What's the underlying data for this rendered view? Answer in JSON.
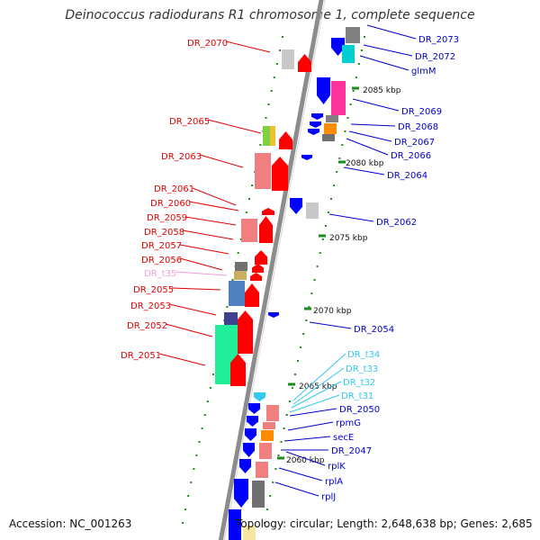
{
  "header": {
    "title": "Deinococcus radiodurans R1 chromosome 1, complete sequence"
  },
  "footer": {
    "accession": "Accession: NC_001263",
    "summary": "Topology: circular; Length: 2,648,638 bp; Genes: 2,685"
  },
  "colors": {
    "background": "#ffffff",
    "backbone": "#8c8c8c",
    "tick": "#1f8a1f",
    "forward_label": "#e00000",
    "reverse_label": "#0000cc",
    "trna_forward_label": "#f0a0d8",
    "trna_reverse_label": "#33c8ee"
  },
  "ruler": {
    "markers": [
      "2085 kbp",
      "2080 kbp",
      "2075 kbp",
      "2070 kbp",
      "2065 kbp",
      "2060 kbp"
    ]
  },
  "forward_genes": [
    {
      "label": "DR_2070",
      "color": "#ff0000"
    },
    {
      "label": "DR_2065",
      "color": "#ff0000"
    },
    {
      "label": "DR_2063",
      "color": "#ff0000"
    },
    {
      "label": "DR_2061",
      "color": "#ff0000"
    },
    {
      "label": "DR_2060",
      "color": "#ff0000"
    },
    {
      "label": "DR_2059",
      "color": "#ff0000"
    },
    {
      "label": "DR_2058",
      "color": "#ff0000"
    },
    {
      "label": "DR_2057",
      "color": "#ff0000"
    },
    {
      "label": "DR_2056",
      "color": "#ff0000"
    },
    {
      "label": "DR_t35",
      "color": "#f0a0d8"
    },
    {
      "label": "DR_2055",
      "color": "#ff0000"
    },
    {
      "label": "DR_2053",
      "color": "#ff0000"
    },
    {
      "label": "DR_2052",
      "color": "#ff0000"
    },
    {
      "label": "DR_2051",
      "color": "#ff0000"
    }
  ],
  "reverse_genes": [
    {
      "label": "DR_2073",
      "color": "#0000ff"
    },
    {
      "label": "DR_2072",
      "color": "#0000ff"
    },
    {
      "label": "glmM",
      "color": "#0000ff"
    },
    {
      "label": "DR_2069",
      "color": "#0000ff"
    },
    {
      "label": "DR_2068",
      "color": "#0000ff"
    },
    {
      "label": "DR_2067",
      "color": "#0000ff"
    },
    {
      "label": "DR_2066",
      "color": "#0000ff"
    },
    {
      "label": "DR_2064",
      "color": "#0000ff"
    },
    {
      "label": "DR_2062",
      "color": "#0000ff"
    },
    {
      "label": "DR_2054",
      "color": "#0000ff"
    },
    {
      "label": "DR_t34",
      "color": "#33c8ee"
    },
    {
      "label": "DR_t33",
      "color": "#33c8ee"
    },
    {
      "label": "DR_t32",
      "color": "#33c8ee"
    },
    {
      "label": "DR_t31",
      "color": "#33c8ee"
    },
    {
      "label": "DR_2050",
      "color": "#0000ff"
    },
    {
      "label": "rpmG",
      "color": "#0000ff"
    },
    {
      "label": "secE",
      "color": "#0000ff"
    },
    {
      "label": "DR_2047",
      "color": "#0000ff"
    },
    {
      "label": "rplK",
      "color": "#0000ff"
    },
    {
      "label": "rplA",
      "color": "#0000ff"
    },
    {
      "label": "rplJ",
      "color": "#0000ff"
    }
  ]
}
